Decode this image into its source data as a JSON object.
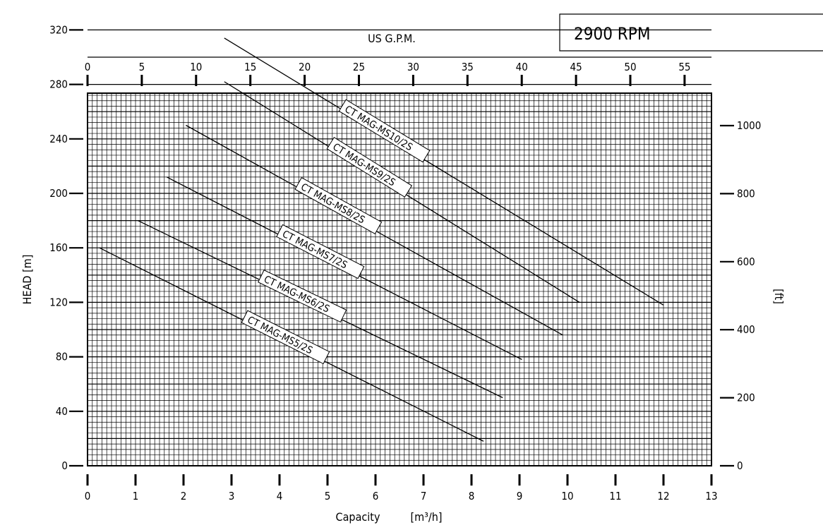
{
  "rpm_label": "2900 RPM",
  "chart_data": {
    "type": "line",
    "title": "",
    "xlabel": "Capacity",
    "xunit": "[m³/h]",
    "ylabel": "HEAD [m]",
    "y2label": "[ft]",
    "x2label": "US G.P.M.",
    "xlim": [
      0,
      13
    ],
    "ylim": [
      0,
      340
    ],
    "x_ticks": [
      "0",
      "1",
      "2",
      "3",
      "4",
      "5",
      "6",
      "7",
      "8",
      "9",
      "10",
      "11",
      "12",
      "13"
    ],
    "y_ticks": [
      "0",
      "40",
      "80",
      "120",
      "160",
      "200",
      "240",
      "280",
      "320"
    ],
    "gpm_ticks": [
      "0",
      "5",
      "10",
      "15",
      "20",
      "25",
      "30",
      "35",
      "40",
      "45",
      "50",
      "55"
    ],
    "ft_ticks": [
      "0",
      "200",
      "400",
      "600",
      "800",
      "1000"
    ],
    "grid": true,
    "series": [
      {
        "name": "CT MAG-MS5/2S",
        "x": [
          0.25,
          8.25
        ],
        "y": [
          160,
          18
        ]
      },
      {
        "name": "CT MAG-MS6/2S",
        "x": [
          1.05,
          8.65
        ],
        "y": [
          180,
          50
        ]
      },
      {
        "name": "CT MAG-MS7/2S",
        "x": [
          1.65,
          9.05
        ],
        "y": [
          212,
          78
        ]
      },
      {
        "name": "CT MAG-MS8/2S",
        "x": [
          2.05,
          9.9
        ],
        "y": [
          250,
          96
        ]
      },
      {
        "name": "CT MAG-MS9/2S",
        "x": [
          2.85,
          10.25
        ],
        "y": [
          282,
          120
        ]
      },
      {
        "name": "CT MAG-MS10/2S",
        "x": [
          2.85,
          12.0
        ],
        "y": [
          314,
          118
        ]
      }
    ]
  }
}
